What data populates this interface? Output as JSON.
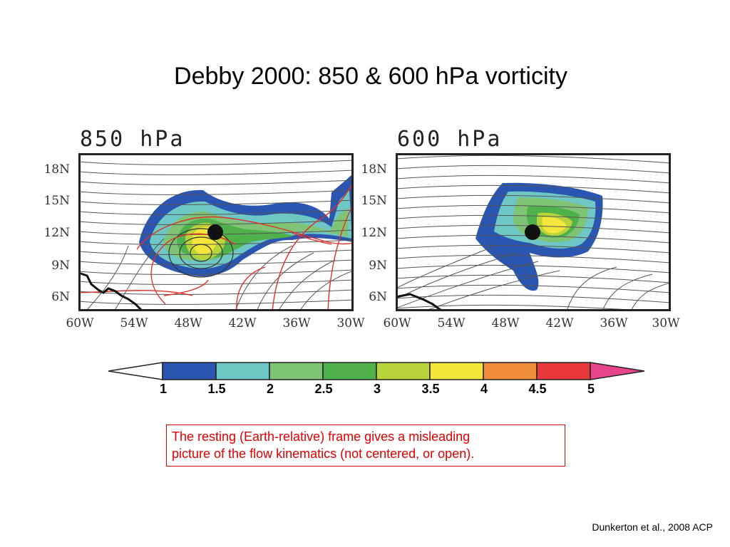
{
  "slide": {
    "title": "Debby 2000: 850 & 600 hPa vorticity"
  },
  "panels": [
    {
      "id": "850",
      "title": "850 hPa"
    },
    {
      "id": "600",
      "title": "600 hPa"
    }
  ],
  "map_axes": {
    "lat_labels": [
      "18N",
      "15N",
      "12N",
      "9N",
      "6N"
    ],
    "lon_labels": [
      "60W",
      "54W",
      "48W",
      "42W",
      "36W",
      "30W"
    ]
  },
  "colorbar": {
    "labels": [
      "1",
      "1.5",
      "2",
      "2.5",
      "3",
      "3.5",
      "4",
      "4.5",
      "5"
    ],
    "colors": [
      "#2a55b0",
      "#6ec7c4",
      "#7fc474",
      "#4eb14c",
      "#b8d43a",
      "#f4e53a",
      "#f08c3a",
      "#e8383a",
      "#e8448a"
    ]
  },
  "note": {
    "line1": "The resting (Earth-relative) frame gives a misleading",
    "line2": "picture of the flow kinematics (not centered, or open)."
  },
  "citation": "Dunkerton et al., 2008 ACP"
}
